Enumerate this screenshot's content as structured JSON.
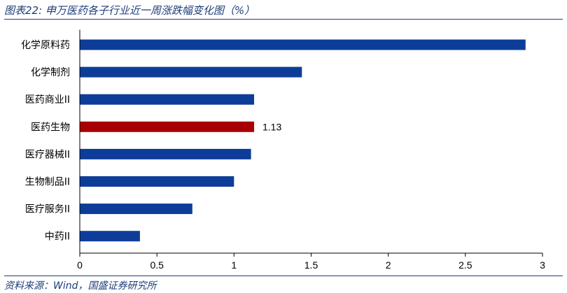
{
  "header": {
    "title": "图表22:  申万医药各子行业近一周涨跌幅变化图（%）"
  },
  "footer": {
    "source": "资料来源：Wind，国盛证券研究所"
  },
  "colors": {
    "bar": "#0d3d99",
    "highlight": "#a80000",
    "text": "#1f3d7a"
  },
  "chart_data": {
    "type": "bar",
    "orientation": "horizontal",
    "categories": [
      "化学原料药",
      "化学制剂",
      "医药商业II",
      "医药生物",
      "医疗器械II",
      "生物制品II",
      "医疗服务II",
      "中药II"
    ],
    "values": [
      2.89,
      1.44,
      1.13,
      1.13,
      1.11,
      1.0,
      0.73,
      0.39
    ],
    "highlight_index": 3,
    "data_labels": [
      {
        "index": 3,
        "text": "1.13"
      }
    ],
    "xlim": [
      0,
      3
    ],
    "xticks": [
      "0",
      "0.5",
      "1",
      "1.5",
      "2",
      "2.5",
      "3"
    ],
    "grid": false
  }
}
